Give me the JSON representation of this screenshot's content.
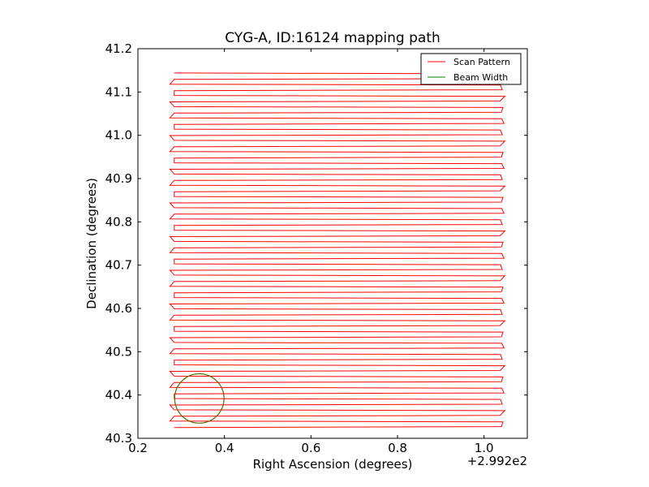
{
  "chart_data": {
    "type": "line",
    "title": "CYG-A, ID:16124 mapping path",
    "xlabel": "Right Ascension (degrees)",
    "ylabel": "Declination (degrees)",
    "x_offset_label": "+2.992e2",
    "xlim": [
      0.2,
      1.1
    ],
    "ylim": [
      40.3,
      41.2
    ],
    "x_ticks": [
      0.2,
      0.4,
      0.6,
      0.8,
      1.0
    ],
    "x_tick_labels": [
      "0.2",
      "0.4",
      "0.6",
      "0.8",
      "1.0"
    ],
    "y_ticks": [
      40.3,
      40.4,
      40.5,
      40.6,
      40.7,
      40.8,
      40.9,
      41.0,
      41.1,
      41.2
    ],
    "y_tick_labels": [
      "40.3",
      "40.4",
      "40.5",
      "40.6",
      "40.7",
      "40.8",
      "40.9",
      "41.0",
      "41.1",
      "41.2"
    ],
    "grid": false,
    "legend_position": "top-right",
    "series": [
      {
        "name": "Scan Pattern",
        "color": "#ff0000",
        "style": "boustrophedon raster",
        "x_left": 0.282,
        "x_right": 1.04,
        "y_start": 40.325,
        "y_end": 41.142,
        "rows": 64
      },
      {
        "name": "Beam Width",
        "color": "#008000",
        "shape": "circle",
        "center": [
          0.342,
          40.392
        ],
        "radius": 0.057
      }
    ]
  }
}
